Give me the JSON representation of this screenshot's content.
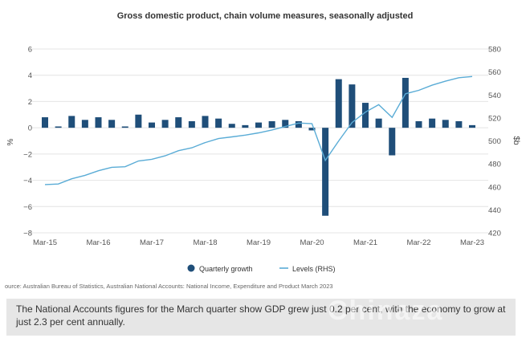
{
  "chart_data": {
    "type": "bar+line",
    "title": "Gross domestic product, chain volume measures, seasonally adjusted",
    "ylabel_left": "%",
    "ylabel_right": "$b",
    "ylim_left": [
      -8,
      6
    ],
    "ylim_right": [
      420,
      580
    ],
    "yticks_left": [
      "6",
      "4",
      "2",
      "0",
      "−2",
      "−4",
      "−6",
      "−8"
    ],
    "yticks_right": [
      "580",
      "560",
      "540",
      "520",
      "500",
      "480",
      "460",
      "440",
      "420"
    ],
    "xtick_labels": [
      "Mar-15",
      "Mar-16",
      "Mar-17",
      "Mar-18",
      "Mar-19",
      "Mar-20",
      "Mar-21",
      "Mar-22",
      "Mar-23"
    ],
    "xtick_index": [
      0,
      4,
      8,
      12,
      16,
      20,
      24,
      28,
      32
    ],
    "categories": [
      "Mar-15",
      "Jun-15",
      "Sep-15",
      "Dec-15",
      "Mar-16",
      "Jun-16",
      "Sep-16",
      "Dec-16",
      "Mar-17",
      "Jun-17",
      "Sep-17",
      "Dec-17",
      "Mar-18",
      "Jun-18",
      "Sep-18",
      "Dec-18",
      "Mar-19",
      "Jun-19",
      "Sep-19",
      "Dec-19",
      "Mar-20",
      "Jun-20",
      "Sep-20",
      "Dec-20",
      "Mar-21",
      "Jun-21",
      "Sep-21",
      "Dec-21",
      "Mar-22",
      "Jun-22",
      "Sep-22",
      "Dec-22",
      "Mar-23"
    ],
    "series": [
      {
        "name": "Quarterly growth",
        "type": "bar",
        "axis": "left",
        "color": "#1f4e79",
        "values": [
          0.8,
          0.1,
          0.9,
          0.6,
          0.8,
          0.6,
          0.1,
          1.0,
          0.4,
          0.6,
          0.8,
          0.5,
          0.9,
          0.7,
          0.3,
          0.2,
          0.4,
          0.5,
          0.6,
          0.5,
          -0.2,
          -6.7,
          3.7,
          3.3,
          1.9,
          0.7,
          -2.1,
          3.8,
          0.5,
          0.7,
          0.6,
          0.5,
          0.2
        ]
      },
      {
        "name": "Levels (RHS)",
        "type": "line",
        "axis": "right",
        "color": "#5aacd6",
        "values": [
          462.0,
          462.5,
          467.0,
          470.0,
          474.0,
          477.0,
          477.5,
          482.5,
          484.0,
          487.0,
          491.5,
          494.0,
          498.5,
          502.0,
          503.5,
          505.0,
          507.0,
          509.5,
          512.5,
          515.5,
          515.0,
          483.0,
          500.0,
          516.0,
          525.0,
          531.5,
          520.5,
          541.0,
          544.0,
          548.5,
          552.0,
          555.0,
          556.0
        ]
      }
    ],
    "legend_position": "bottom",
    "grid": "horizontal"
  },
  "source": "ource: Australian Bureau of Statistics, Australian National Accounts: National Income, Expenditure and Product March 2023",
  "caption": "The National Accounts figures for the March quarter show GDP grew just 0.2 per cent, with the economy to grow at just 2.3 per cent annually.",
  "watermark": "Chinaza"
}
